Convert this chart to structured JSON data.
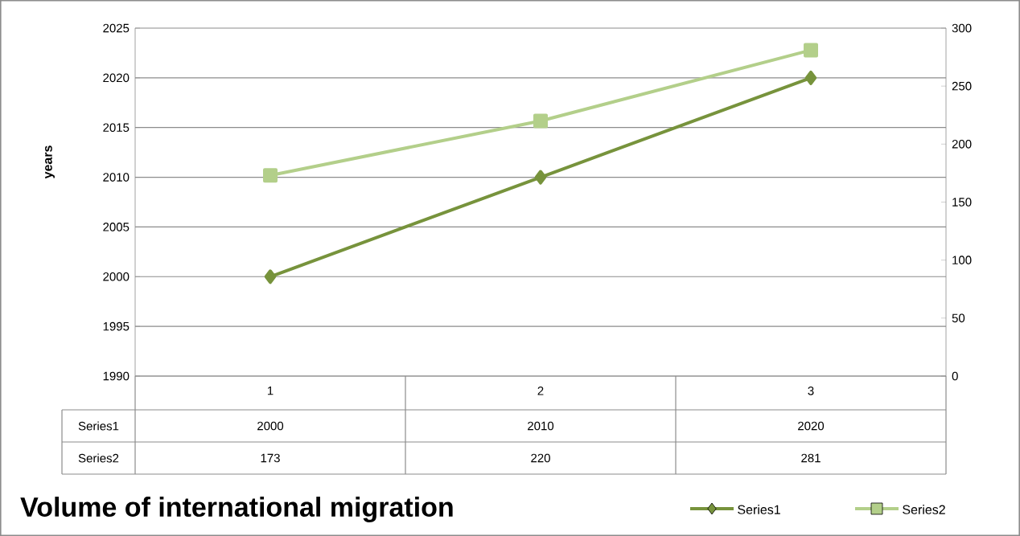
{
  "chart_data": {
    "type": "line",
    "title": "Volume of international  migration",
    "ylabel": "years",
    "categories": [
      "1",
      "2",
      "3"
    ],
    "series": [
      {
        "name": "Series1",
        "color": "#77933c",
        "marker": "diamond",
        "values": [
          2000,
          2010,
          2020
        ]
      },
      {
        "name": "Series2",
        "color": "#b3cf8a",
        "marker": "square",
        "axis": "y2",
        "values": [
          173,
          220,
          281
        ]
      }
    ],
    "ylim": [
      1990,
      2025
    ],
    "yticks": [
      1990,
      1995,
      2000,
      2005,
      2010,
      2015,
      2020,
      2025
    ],
    "y2lim": [
      0,
      300
    ],
    "y2ticks": [
      0,
      50,
      100,
      150,
      200,
      250,
      300
    ],
    "grid": "y",
    "legend": "bottom right",
    "data_labels": true
  }
}
